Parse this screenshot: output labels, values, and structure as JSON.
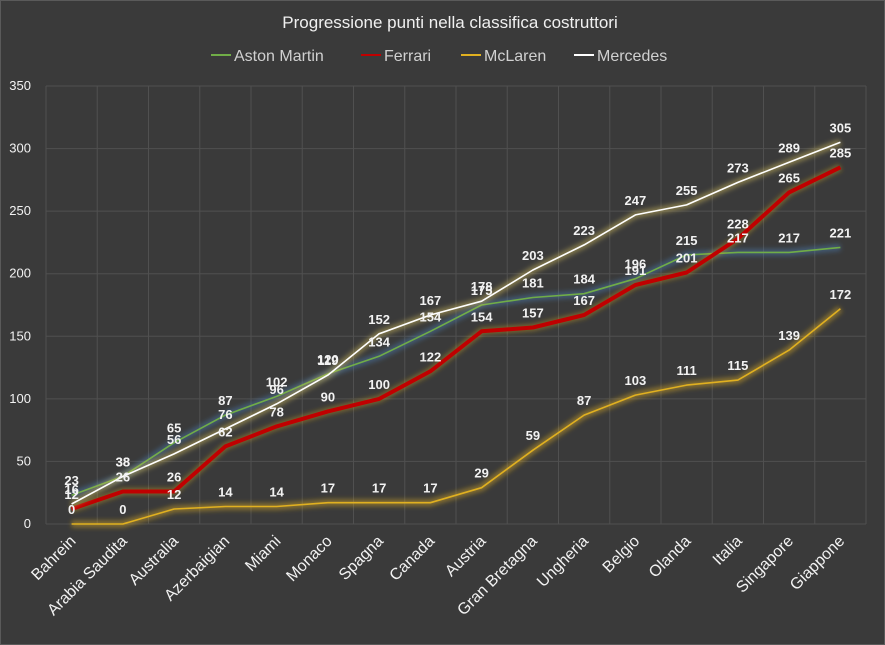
{
  "chart_data": {
    "type": "line",
    "title": "Progressione punti nella classifica costruttori",
    "xlabel": "",
    "ylabel": "",
    "categories": [
      "Bahrein",
      "Arabia Saudita",
      "Australia",
      "Azerbaigian",
      "Miami",
      "Monaco",
      "Spagna",
      "Canada",
      "Austria",
      "Gran Bretagna",
      "Ungheria",
      "Belgio",
      "Olanda",
      "Italia",
      "Singapore",
      "Giappone"
    ],
    "ylim": [
      0,
      350
    ],
    "yticks": [
      0,
      50,
      100,
      150,
      200,
      250,
      300,
      350
    ],
    "grid": true,
    "legend_position": "top",
    "series": [
      {
        "name": "Aston Martin",
        "color": "#70ad47",
        "glow": "#4a7fb5",
        "values": [
          23,
          38,
          65,
          87,
          102,
          120,
          134,
          154,
          175,
          181,
          184,
          196,
          215,
          217,
          217,
          221
        ]
      },
      {
        "name": "Ferrari",
        "color": "#c00000",
        "glow": "#c9a227",
        "values": [
          12,
          26,
          26,
          62,
          78,
          90,
          100,
          122,
          154,
          157,
          167,
          191,
          201,
          228,
          265,
          285
        ]
      },
      {
        "name": "McLaren",
        "color": "#e0b020",
        "glow": "#e0b020",
        "values": [
          0,
          0,
          12,
          14,
          14,
          17,
          17,
          17,
          29,
          59,
          87,
          103,
          111,
          115,
          139,
          172
        ]
      },
      {
        "name": "Mercedes",
        "color": "#ffffff",
        "glow": "#d8c060",
        "values": [
          16,
          38,
          56,
          76,
          96,
          119,
          152,
          167,
          178,
          203,
          223,
          247,
          255,
          273,
          289,
          305
        ]
      }
    ]
  }
}
